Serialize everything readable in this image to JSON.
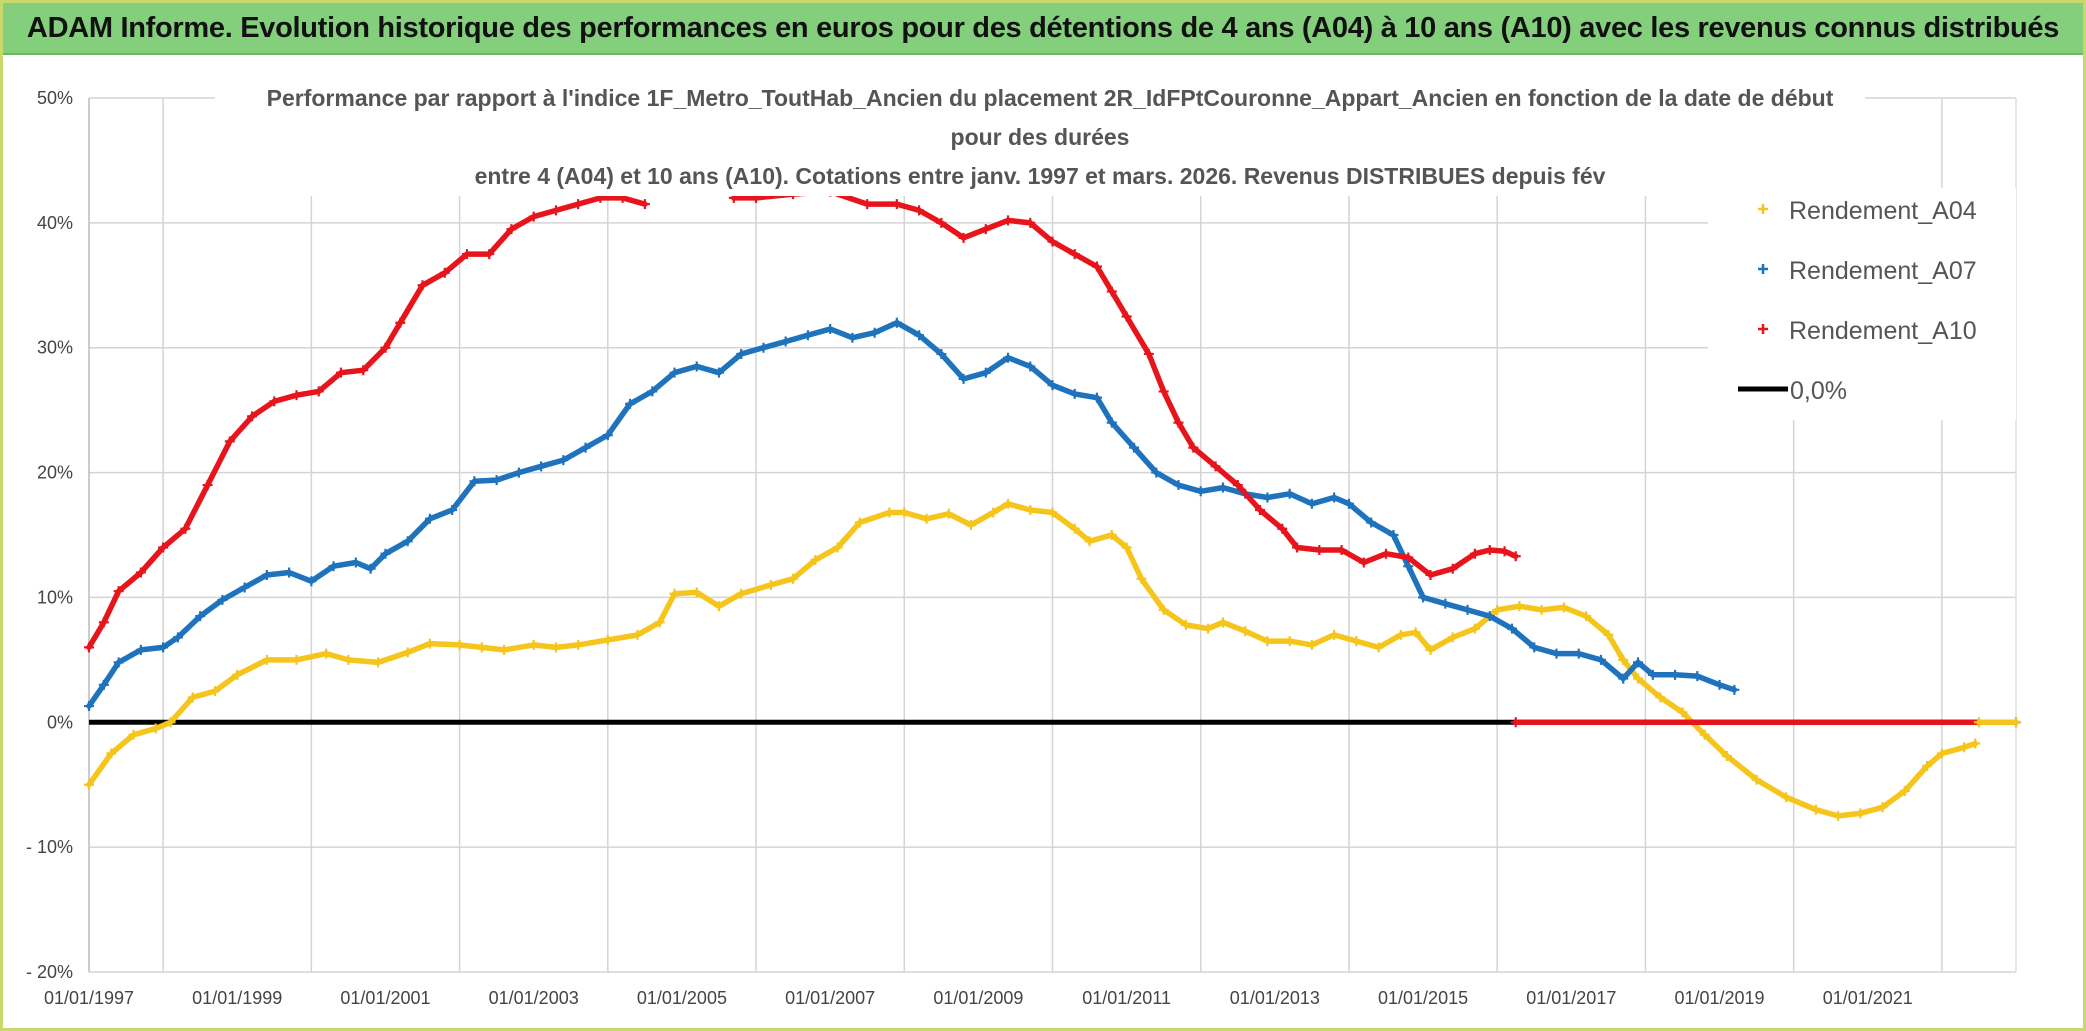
{
  "banner": {
    "title": "ADAM Informe. Evolution historique des performances en euros pour des détentions de 4 ans (A04) à 10 ans (A10) avec les revenus connus distribués"
  },
  "colors": {
    "A04": "#f5c51c",
    "A07": "#1f73bd",
    "A10": "#e8141c",
    "zero": "#000000",
    "banner": "#84cf7c",
    "grid": "#d4d4d4"
  },
  "chart_data": {
    "type": "scatter",
    "title_lines": [
      "Performance par rapport à l'indice 1F_Metro_ToutHab_Ancien  du placement 2R_IdFPtCouronne_Appart_Ancien en fonction de la date de début",
      "pour des durées",
      "entre 4 (A04) et 10 ans (A10). Cotations entre janv. 1997 et mars. 2026. Revenus DISTRIBUES depuis fév"
    ],
    "x_unit": "year",
    "xlim": [
      1997.0,
      2023.0
    ],
    "ylim": [
      -20,
      50
    ],
    "y_ticks": [
      50,
      40,
      30,
      20,
      10,
      0,
      -10,
      -20
    ],
    "y_tick_labels": [
      "50%",
      "40%",
      "30%",
      "20%",
      "10%",
      "0%",
      "- 10%",
      "- 20%"
    ],
    "x_ticks": [
      1997,
      1999,
      2001,
      2003,
      2005,
      2007,
      2009,
      2011,
      2013,
      2015,
      2017,
      2019,
      2021
    ],
    "x_tick_labels": [
      "01/01/1997",
      "01/01/1999",
      "01/01/2001",
      "01/01/2003",
      "01/01/2005",
      "01/01/2007",
      "01/01/2009",
      "01/01/2011",
      "01/01/2013",
      "01/01/2015",
      "01/01/2017",
      "01/01/2019",
      "01/01/2021"
    ],
    "legend": {
      "position": "top-right",
      "entries": [
        {
          "key": "A04",
          "label": "Rendement_A04"
        },
        {
          "key": "A07",
          "label": "Rendement_A07"
        },
        {
          "key": "A10",
          "label": "Rendement_A10"
        },
        {
          "key": "zero",
          "label": "0,0%"
        }
      ]
    },
    "series": [
      {
        "key": "A04",
        "name": "Rendement_A04",
        "points": [
          [
            1997.0,
            -5
          ],
          [
            1997.3,
            -2.5
          ],
          [
            1997.6,
            -1
          ],
          [
            1997.9,
            -0.5
          ],
          [
            1998.1,
            0
          ],
          [
            1998.4,
            2
          ],
          [
            1998.7,
            2.5
          ],
          [
            1999.0,
            3.8
          ],
          [
            1999.4,
            5
          ],
          [
            1999.8,
            5
          ],
          [
            2000.2,
            5.5
          ],
          [
            2000.5,
            5
          ],
          [
            2000.9,
            4.8
          ],
          [
            2001.3,
            5.6
          ],
          [
            2001.6,
            6.3
          ],
          [
            2002.0,
            6.2
          ],
          [
            2002.3,
            6
          ],
          [
            2002.6,
            5.8
          ],
          [
            2003.0,
            6.2
          ],
          [
            2003.3,
            6
          ],
          [
            2003.6,
            6.2
          ],
          [
            2004.0,
            6.6
          ],
          [
            2004.4,
            7
          ],
          [
            2004.7,
            8
          ],
          [
            2004.9,
            10.3
          ],
          [
            2005.2,
            10.4
          ],
          [
            2005.5,
            9.3
          ],
          [
            2005.8,
            10.3
          ],
          [
            2006.2,
            11
          ],
          [
            2006.5,
            11.5
          ],
          [
            2006.8,
            13
          ],
          [
            2007.1,
            14
          ],
          [
            2007.4,
            16
          ],
          [
            2007.8,
            16.8
          ],
          [
            2008.0,
            16.8
          ],
          [
            2008.3,
            16.3
          ],
          [
            2008.6,
            16.7
          ],
          [
            2008.9,
            15.8
          ],
          [
            2009.2,
            16.8
          ],
          [
            2009.4,
            17.5
          ],
          [
            2009.7,
            17
          ],
          [
            2010.0,
            16.8
          ],
          [
            2010.3,
            15.5
          ],
          [
            2010.5,
            14.5
          ],
          [
            2010.8,
            15
          ],
          [
            2011.0,
            14
          ],
          [
            2011.2,
            11.5
          ],
          [
            2011.5,
            9
          ],
          [
            2011.8,
            7.8
          ],
          [
            2012.1,
            7.5
          ],
          [
            2012.3,
            8
          ],
          [
            2012.6,
            7.3
          ],
          [
            2012.9,
            6.5
          ],
          [
            2013.2,
            6.5
          ],
          [
            2013.5,
            6.2
          ],
          [
            2013.8,
            7
          ],
          [
            2014.1,
            6.5
          ],
          [
            2014.4,
            6
          ],
          [
            2014.7,
            7
          ],
          [
            2014.9,
            7.2
          ],
          [
            2015.1,
            5.8
          ],
          [
            2015.4,
            6.8
          ],
          [
            2015.7,
            7.5
          ],
          [
            2016.0,
            9
          ],
          [
            2016.3,
            9.3
          ],
          [
            2016.6,
            9
          ],
          [
            2016.9,
            9.2
          ],
          [
            2017.2,
            8.5
          ],
          [
            2017.5,
            7
          ],
          [
            2017.7,
            5
          ],
          [
            2017.9,
            3.5
          ],
          [
            2018.2,
            2
          ],
          [
            2018.5,
            0.8
          ],
          [
            2018.8,
            -1
          ],
          [
            2019.1,
            -2.7
          ],
          [
            2019.5,
            -4.6
          ],
          [
            2019.9,
            -6
          ],
          [
            2020.3,
            -7
          ],
          [
            2020.6,
            -7.5
          ],
          [
            2020.9,
            -7.3
          ],
          [
            2021.2,
            -6.8
          ],
          [
            2021.5,
            -5.5
          ],
          [
            2021.8,
            -3.5
          ],
          [
            2022.0,
            -2.5
          ],
          [
            2022.3,
            -2
          ],
          [
            2022.45,
            -1.7
          ]
        ]
      },
      {
        "key": "A07",
        "name": "Rendement_A07",
        "points": [
          [
            1997.0,
            1.3
          ],
          [
            1997.2,
            3
          ],
          [
            1997.4,
            4.8
          ],
          [
            1997.7,
            5.8
          ],
          [
            1998.0,
            6
          ],
          [
            1998.2,
            6.8
          ],
          [
            1998.5,
            8.5
          ],
          [
            1998.8,
            9.8
          ],
          [
            1999.1,
            10.8
          ],
          [
            1999.4,
            11.8
          ],
          [
            1999.7,
            12
          ],
          [
            2000.0,
            11.3
          ],
          [
            2000.3,
            12.5
          ],
          [
            2000.6,
            12.8
          ],
          [
            2000.8,
            12.3
          ],
          [
            2001.0,
            13.5
          ],
          [
            2001.3,
            14.5
          ],
          [
            2001.6,
            16.3
          ],
          [
            2001.9,
            17
          ],
          [
            2002.2,
            19.3
          ],
          [
            2002.5,
            19.4
          ],
          [
            2002.8,
            20
          ],
          [
            2003.1,
            20.5
          ],
          [
            2003.4,
            21
          ],
          [
            2003.7,
            22
          ],
          [
            2004.0,
            23
          ],
          [
            2004.3,
            25.5
          ],
          [
            2004.6,
            26.5
          ],
          [
            2004.9,
            28
          ],
          [
            2005.2,
            28.5
          ],
          [
            2005.5,
            28
          ],
          [
            2005.8,
            29.5
          ],
          [
            2006.1,
            30
          ],
          [
            2006.4,
            30.5
          ],
          [
            2006.7,
            31
          ],
          [
            2007.0,
            31.5
          ],
          [
            2007.3,
            30.8
          ],
          [
            2007.6,
            31.2
          ],
          [
            2007.9,
            32
          ],
          [
            2008.2,
            31
          ],
          [
            2008.5,
            29.5
          ],
          [
            2008.8,
            27.5
          ],
          [
            2009.1,
            28
          ],
          [
            2009.4,
            29.2
          ],
          [
            2009.7,
            28.5
          ],
          [
            2010.0,
            27
          ],
          [
            2010.3,
            26.3
          ],
          [
            2010.6,
            26
          ],
          [
            2010.8,
            24
          ],
          [
            2011.1,
            22
          ],
          [
            2011.4,
            20
          ],
          [
            2011.7,
            19
          ],
          [
            2012.0,
            18.5
          ],
          [
            2012.3,
            18.8
          ],
          [
            2012.6,
            18.3
          ],
          [
            2012.9,
            18
          ],
          [
            2013.2,
            18.3
          ],
          [
            2013.5,
            17.5
          ],
          [
            2013.8,
            18
          ],
          [
            2014.0,
            17.5
          ],
          [
            2014.3,
            16
          ],
          [
            2014.6,
            15
          ],
          [
            2014.8,
            12.5
          ],
          [
            2015.0,
            10
          ],
          [
            2015.3,
            9.5
          ],
          [
            2015.6,
            9
          ],
          [
            2015.9,
            8.5
          ],
          [
            2016.2,
            7.5
          ],
          [
            2016.5,
            6
          ],
          [
            2016.8,
            5.5
          ],
          [
            2017.1,
            5.5
          ],
          [
            2017.4,
            5
          ],
          [
            2017.7,
            3.5
          ],
          [
            2017.9,
            4.8
          ],
          [
            2018.1,
            3.8
          ],
          [
            2018.4,
            3.8
          ],
          [
            2018.7,
            3.7
          ],
          [
            2019.0,
            3
          ],
          [
            2019.2,
            2.6
          ]
        ]
      },
      {
        "key": "A10",
        "name": "Rendement_A10",
        "points": [
          [
            1997.0,
            6
          ],
          [
            1997.2,
            8
          ],
          [
            1997.4,
            10.5
          ],
          [
            1997.7,
            12
          ],
          [
            1998.0,
            14
          ],
          [
            1998.3,
            15.5
          ],
          [
            1998.6,
            19
          ],
          [
            1998.9,
            22.5
          ],
          [
            1999.2,
            24.5
          ],
          [
            1999.5,
            25.7
          ],
          [
            1999.8,
            26.2
          ],
          [
            2000.1,
            26.5
          ],
          [
            2000.4,
            28
          ],
          [
            2000.7,
            28.2
          ],
          [
            2001.0,
            30
          ],
          [
            2001.2,
            32
          ],
          [
            2001.5,
            35
          ],
          [
            2001.8,
            36
          ],
          [
            2002.1,
            37.5
          ],
          [
            2002.4,
            37.5
          ],
          [
            2002.7,
            39.5
          ],
          [
            2003.0,
            40.5
          ],
          [
            2003.3,
            41
          ],
          [
            2003.6,
            41.5
          ],
          [
            2003.9,
            42
          ],
          [
            2004.2,
            42
          ],
          [
            2004.5,
            41.5
          ]
        ]
      },
      {
        "key": "A10",
        "name": "Rendement_A10",
        "points": [
          [
            2005.7,
            42
          ],
          [
            2006.0,
            42
          ],
          [
            2006.5,
            42.3
          ],
          [
            2007.0,
            42.5
          ],
          [
            2007.5,
            41.5
          ],
          [
            2007.9,
            41.5
          ],
          [
            2008.2,
            41
          ],
          [
            2008.5,
            40
          ],
          [
            2008.8,
            38.8
          ],
          [
            2009.1,
            39.5
          ],
          [
            2009.4,
            40.2
          ],
          [
            2009.7,
            40
          ],
          [
            2010.0,
            38.5
          ],
          [
            2010.3,
            37.5
          ],
          [
            2010.6,
            36.5
          ],
          [
            2010.8,
            34.5
          ],
          [
            2011.0,
            32.5
          ],
          [
            2011.3,
            29.5
          ],
          [
            2011.5,
            26.5
          ],
          [
            2011.7,
            24
          ],
          [
            2011.9,
            22
          ],
          [
            2012.2,
            20.5
          ],
          [
            2012.5,
            19
          ],
          [
            2012.8,
            17
          ],
          [
            2013.1,
            15.5
          ],
          [
            2013.3,
            14
          ],
          [
            2013.6,
            13.8
          ],
          [
            2013.9,
            13.8
          ],
          [
            2014.2,
            12.8
          ],
          [
            2014.5,
            13.5
          ],
          [
            2014.8,
            13.2
          ],
          [
            2015.1,
            11.8
          ],
          [
            2015.4,
            12.3
          ],
          [
            2015.7,
            13.5
          ],
          [
            2015.9,
            13.8
          ],
          [
            2016.1,
            13.7
          ],
          [
            2016.25,
            13.3
          ]
        ]
      },
      {
        "key": "A10",
        "name": "Rendement_A10",
        "points": [
          [
            2016.25,
            0
          ],
          [
            2023.0,
            0
          ]
        ]
      },
      {
        "key": "A04",
        "name": "Rendement_A04",
        "points": [
          [
            2022.5,
            0
          ],
          [
            2023.0,
            0
          ]
        ]
      }
    ],
    "reference_line": {
      "key": "zero",
      "label": "0,0%",
      "y": 0
    }
  }
}
